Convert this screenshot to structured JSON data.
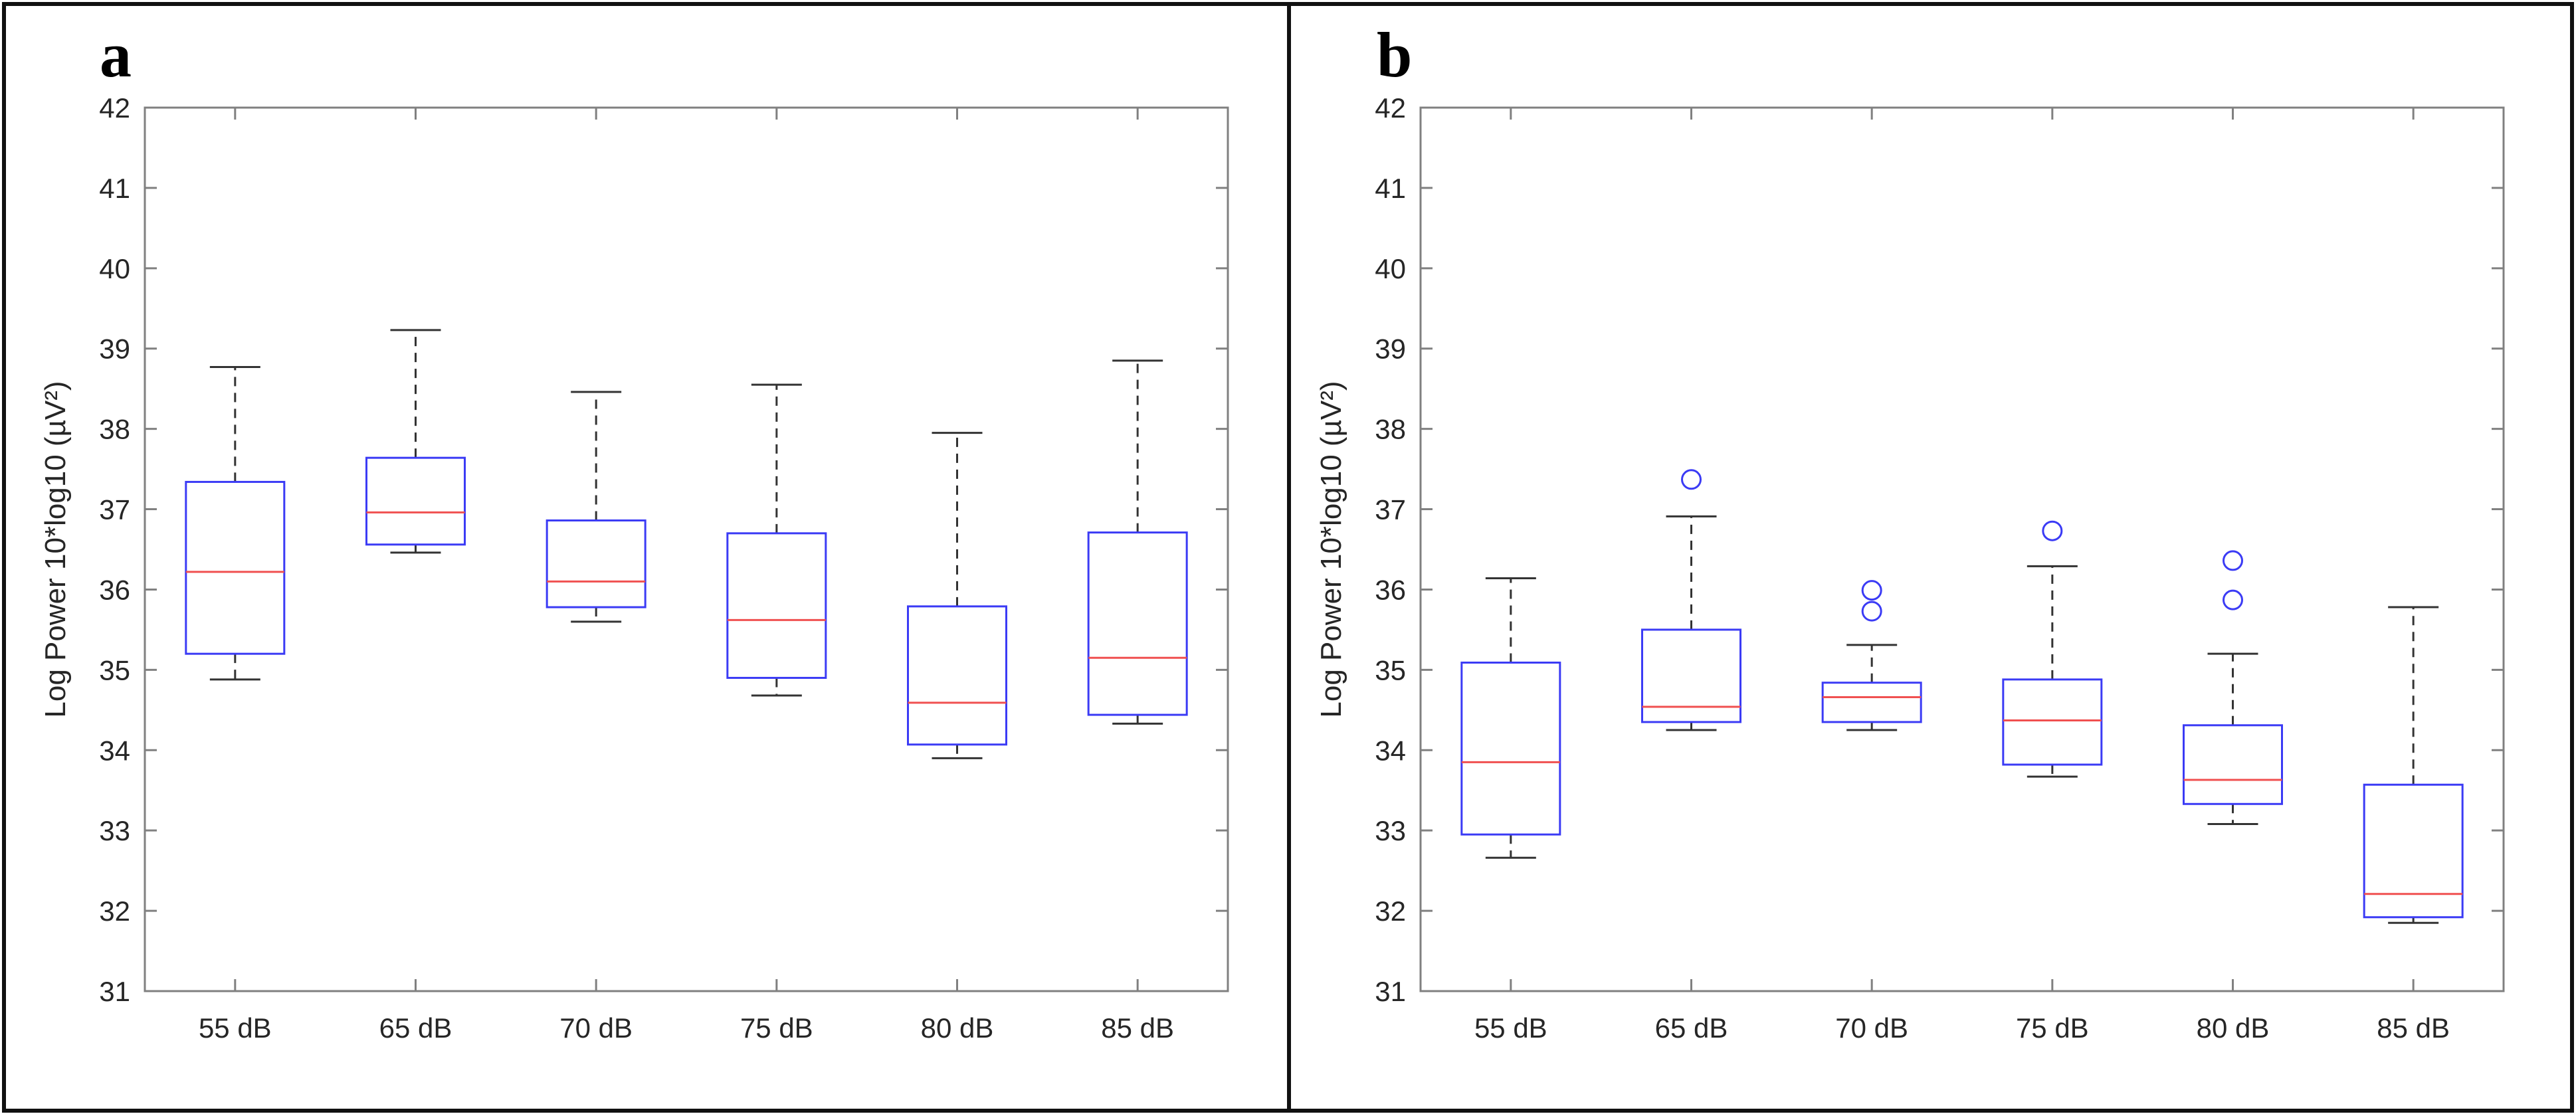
{
  "chart_data": [
    {
      "type": "box",
      "panel_label": "a",
      "ylabel": "Log Power 10*log10 (µV²)",
      "xlabel": "",
      "ylim": [
        31,
        42
      ],
      "yticks": [
        "31",
        "32",
        "33",
        "34",
        "35",
        "36",
        "37",
        "38",
        "39",
        "40",
        "41",
        "42"
      ],
      "categories": [
        "55 dB",
        "65 dB",
        "70 dB",
        "75 dB",
        "80 dB",
        "85 dB"
      ],
      "boxes": [
        {
          "whisker_low": 34.88,
          "q1": 35.2,
          "median": 36.22,
          "q3": 37.34,
          "whisker_high": 38.77,
          "outliers": []
        },
        {
          "whisker_low": 36.46,
          "q1": 36.56,
          "median": 36.96,
          "q3": 37.64,
          "whisker_high": 39.23,
          "outliers": []
        },
        {
          "whisker_low": 35.6,
          "q1": 35.78,
          "median": 36.1,
          "q3": 36.86,
          "whisker_high": 38.46,
          "outliers": []
        },
        {
          "whisker_low": 34.68,
          "q1": 34.9,
          "median": 35.62,
          "q3": 36.7,
          "whisker_high": 38.55,
          "outliers": []
        },
        {
          "whisker_low": 33.9,
          "q1": 34.07,
          "median": 34.59,
          "q3": 35.79,
          "whisker_high": 37.95,
          "outliers": []
        },
        {
          "whisker_low": 34.33,
          "q1": 34.44,
          "median": 35.15,
          "q3": 36.71,
          "whisker_high": 38.85,
          "outliers": []
        }
      ]
    },
    {
      "type": "box",
      "panel_label": "b",
      "ylabel": "Log Power 10*log10 (µV²)",
      "xlabel": "",
      "ylim": [
        31,
        42
      ],
      "yticks": [
        "31",
        "32",
        "33",
        "34",
        "35",
        "36",
        "37",
        "38",
        "39",
        "40",
        "41",
        "42"
      ],
      "categories": [
        "55 dB",
        "65 dB",
        "70 dB",
        "75 dB",
        "80 dB",
        "85 dB"
      ],
      "boxes": [
        {
          "whisker_low": 32.66,
          "q1": 32.95,
          "median": 33.85,
          "q3": 35.09,
          "whisker_high": 36.14,
          "outliers": []
        },
        {
          "whisker_low": 34.25,
          "q1": 34.35,
          "median": 34.54,
          "q3": 35.5,
          "whisker_high": 36.91,
          "outliers": [
            37.37
          ]
        },
        {
          "whisker_low": 34.25,
          "q1": 34.35,
          "median": 34.66,
          "q3": 34.84,
          "whisker_high": 35.31,
          "outliers": [
            35.73,
            35.99
          ]
        },
        {
          "whisker_low": 33.67,
          "q1": 33.82,
          "median": 34.37,
          "q3": 34.88,
          "whisker_high": 36.29,
          "outliers": [
            36.73
          ]
        },
        {
          "whisker_low": 33.08,
          "q1": 33.33,
          "median": 33.63,
          "q3": 34.31,
          "whisker_high": 35.2,
          "outliers": [
            35.87,
            36.36
          ]
        },
        {
          "whisker_low": 31.85,
          "q1": 31.92,
          "median": 32.21,
          "q3": 33.57,
          "whisker_high": 35.78,
          "outliers": []
        }
      ]
    }
  ],
  "colors": {
    "box": "#3b3bf5",
    "median": "#f05050",
    "whisker": "#333333",
    "outlier": "#3b3bf5",
    "axis": "#808080",
    "frame": "#111111"
  }
}
